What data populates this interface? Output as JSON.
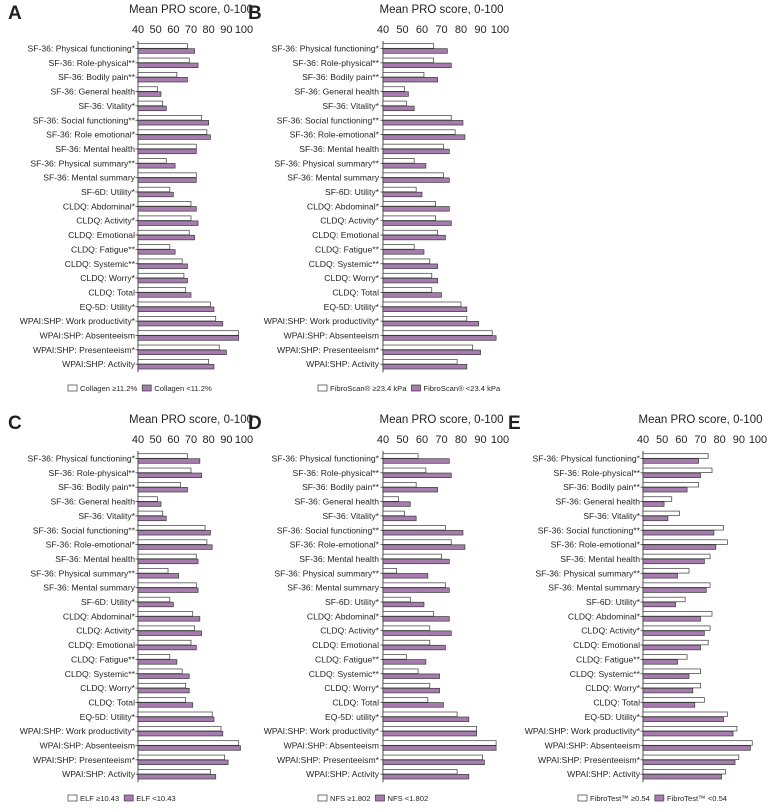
{
  "colors": {
    "series_a": "#ffffff",
    "series_b": "#a57cad",
    "stroke": "#3a3a3a"
  },
  "chart_data": [
    {
      "type": "bar",
      "panel": "A",
      "title": "Mean PRO score, 0-100",
      "xlim": [
        40,
        100
      ],
      "ticks": [
        40,
        50,
        60,
        70,
        80,
        90,
        100
      ],
      "categories": [
        "SF-36: Physical functioning*",
        "SF-36: Role-physical**",
        "SF-36: Bodily pain**",
        "SF-36: General health",
        "SF-36: Vitality*",
        "SF-36: Social functioning**",
        "SF-36: Role emotional*",
        "SF-36: Mental health",
        "SF-36: Physical summary**",
        "SF-36: Mental summary",
        "SF-6D: Utility*",
        "CLDQ: Abdominal*",
        "CLDQ: Activity*",
        "CLDQ: Emotional",
        "CLDQ: Fatigue**",
        "CLDQ: Systemic**",
        "CLDQ: Worry*",
        "CLDQ: Total",
        "EQ-5D: Utility*",
        "WPAI:SHP: Work productivity*",
        "WPAI:SHP: Absenteeism",
        "WPAI:SHP: Presenteeism*",
        "WPAI:SHP: Activity"
      ],
      "series": [
        {
          "name": "Collagen ≥11.2%",
          "values": [
            68,
            69,
            62,
            51,
            54,
            76,
            79,
            73,
            56,
            73,
            58,
            70,
            70,
            69,
            58,
            65,
            66,
            67,
            81,
            84,
            97,
            86,
            80
          ]
        },
        {
          "name": "Collagen <11.2%",
          "values": [
            72,
            74,
            68,
            53,
            56,
            80,
            81,
            73,
            61,
            73,
            60,
            73,
            74,
            72,
            61,
            68,
            68,
            70,
            83,
            88,
            97,
            90,
            83
          ]
        }
      ]
    },
    {
      "type": "bar",
      "panel": "B",
      "title": "Mean PRO score, 0-100",
      "xlim": [
        40,
        100
      ],
      "ticks": [
        40,
        50,
        60,
        70,
        80,
        90,
        100
      ],
      "categories": [
        "SF-36: Physical functioning*",
        "SF-36: Role-physical**",
        "SF-36: Bodily pain**",
        "SF-36: General health",
        "SF-36: Vitality*",
        "SF-36: Social functioning**",
        "SF-36: Role-emotional*",
        "SF-36: Mental health",
        "SF-36: Physical summary**",
        "SF-36: Mental summary",
        "SF-6D: Utility*",
        "CLDQ: Abdominal*",
        "CLDQ: Activity*",
        "CLDQ: Emotional",
        "CLDQ: Fatigue**",
        "CLDQ: Systemic**",
        "CLDQ: Worry*",
        "CLDQ: Total",
        "EQ-5D: Utility*",
        "WPAI:SHP: Work productivity*",
        "WPAI:SHP: Absenteeism",
        "WPAI:SHP: Presenteeism*",
        "WPAI:SHP: Activity"
      ],
      "series": [
        {
          "name": "FibroScan® ≥23.4 kPa",
          "values": [
            66,
            66,
            61,
            51,
            52,
            75,
            77,
            71,
            56,
            71,
            57,
            67,
            67,
            68,
            56,
            64,
            65,
            65,
            80,
            83,
            96,
            86,
            78
          ]
        },
        {
          "name": "FibroScan® <23.4 kPa",
          "values": [
            73,
            75,
            68,
            53,
            56,
            81,
            82,
            74,
            62,
            74,
            60,
            74,
            75,
            72,
            61,
            68,
            68,
            70,
            83,
            89,
            98,
            90,
            83
          ]
        }
      ]
    },
    {
      "type": "bar",
      "panel": "C",
      "title": "Mean PRO score, 0-100",
      "xlim": [
        40,
        100
      ],
      "ticks": [
        40,
        50,
        60,
        70,
        80,
        90,
        100
      ],
      "categories": [
        "SF-36: Physical functioning*",
        "SF-36: Role-physical**",
        "SF-36: Bodily pain**",
        "SF-36: General health",
        "SF-36: Vitality*",
        "SF-36: Social functioning**",
        "SF-36: Role-emotional*",
        "SF-36: Mental health",
        "SF-36: Physical summary**",
        "SF-36: Mental summary",
        "SF-6D: Utility*",
        "CLDQ: Abdominal*",
        "CLDQ: Activity*",
        "CLDQ: Emotional",
        "CLDQ: Fatigue**",
        "CLDQ: Systemic**",
        "CLDQ: Worry*",
        "CLDQ: Total",
        "EQ-5D: Utility*",
        "WPAI:SHP: Work productivity*",
        "WPAI:SHP: Absenteeism",
        "WPAI:SHP: Presenteeism*",
        "WPAI:SHP: Activity"
      ],
      "series": [
        {
          "name": "ELF ≥10.43",
          "values": [
            68,
            70,
            64,
            51,
            54,
            78,
            79,
            73,
            57,
            73,
            58,
            71,
            72,
            70,
            58,
            65,
            67,
            67,
            82,
            87,
            97,
            89,
            81
          ]
        },
        {
          "name": "ELF <10.43",
          "values": [
            75,
            76,
            68,
            53,
            56,
            81,
            82,
            74,
            63,
            74,
            60,
            75,
            76,
            73,
            62,
            69,
            69,
            71,
            83,
            88,
            98,
            91,
            84
          ]
        }
      ]
    },
    {
      "type": "bar",
      "panel": "D",
      "title": "Mean PRO score, 0-100",
      "xlim": [
        40,
        100
      ],
      "ticks": [
        40,
        50,
        60,
        70,
        80,
        90,
        100
      ],
      "categories": [
        "SF-36: Physical functioning*",
        "SF-36: Role-physical**",
        "SF-36: Bodily pain**",
        "SF-36: General health",
        "SF-36: Vitality*",
        "SF-36: Social functioning**",
        "SF-36: Role-emotional*",
        "SF-36: Mental health",
        "SF-36: Physical summary**",
        "SF-36: Mental summary",
        "SF-6D: Utility*",
        "CLDQ: Abdominal*",
        "CLDQ: Activity*",
        "CLDQ: Emotional",
        "CLDQ: Fatigue**",
        "CLDQ: Systemic**",
        "CLDQ: Worry*",
        "CLDQ: Total",
        "EQ-5D: utility*",
        "WPAI:SHP: Work productivity*",
        "WPAI:SHP: Absenteeism",
        "WPAI:SHP: Presenteeism*",
        "WPAI:SHP: Activity"
      ],
      "series": [
        {
          "name": "NFS ≥1.802",
          "values": [
            58,
            62,
            57,
            48,
            51,
            72,
            75,
            70,
            47,
            72,
            54,
            66,
            64,
            64,
            52,
            58,
            64,
            63,
            78,
            88,
            98,
            91,
            78
          ]
        },
        {
          "name": "NFS <1.802",
          "values": [
            74,
            75,
            68,
            54,
            57,
            81,
            82,
            74,
            63,
            74,
            61,
            74,
            75,
            72,
            62,
            69,
            69,
            71,
            84,
            88,
            98,
            92,
            84
          ]
        }
      ]
    },
    {
      "type": "bar",
      "panel": "E",
      "title": "Mean PRO score, 0-100",
      "xlim": [
        40,
        100
      ],
      "ticks": [
        40,
        50,
        60,
        70,
        80,
        90,
        100
      ],
      "categories": [
        "SF-36: Physical functioning*",
        "SF-36: Role-physical**",
        "SF-36: Bodily pain**",
        "SF-36: General health",
        "SF-36: Vitality*",
        "SF-36: Social functioning**",
        "SF-36: Role-emotional*",
        "SF-36: Mental health",
        "SF-36: Physical summary**",
        "SF-36: Mental summary",
        "SF-6D: Utility*",
        "CLDQ: Abdominal*",
        "CLDQ: Activity*",
        "CLDQ: Emotional",
        "CLDQ: Fatigue**",
        "CLDQ: Systemic**",
        "CLDQ: Worry*",
        "CLDQ: Total",
        "EQ-5D: Utility*",
        "WPAI:SHP: Work productivity*",
        "WPAI:SHP: Absenteeism",
        "WPAI:SHP: Presenteeism*",
        "WPAI:SHP: Activity"
      ],
      "series": [
        {
          "name": "FibroTest™ ≥0.54",
          "values": [
            74,
            76,
            69,
            55,
            59,
            82,
            84,
            75,
            64,
            75,
            62,
            76,
            75,
            74,
            63,
            70,
            70,
            72,
            84,
            89,
            97,
            90,
            83
          ]
        },
        {
          "name": "FibroTest™ <0.54",
          "values": [
            69,
            70,
            63,
            51,
            53,
            77,
            78,
            72,
            58,
            73,
            57,
            70,
            72,
            70,
            58,
            64,
            66,
            67,
            82,
            87,
            96,
            88,
            81
          ]
        }
      ]
    }
  ]
}
